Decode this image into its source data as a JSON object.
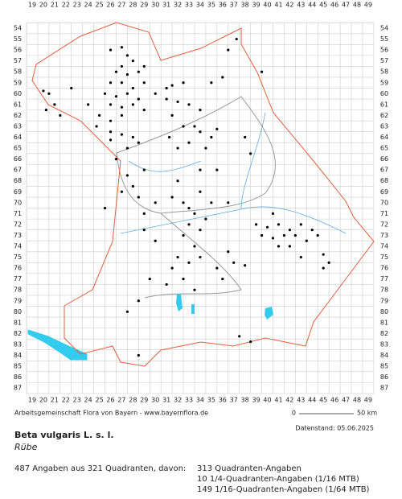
{
  "map": {
    "xticks": [
      19,
      20,
      21,
      22,
      23,
      24,
      25,
      26,
      27,
      28,
      29,
      30,
      31,
      32,
      33,
      34,
      35,
      36,
      37,
      38,
      39,
      40,
      41,
      42,
      43,
      44,
      45,
      46,
      47,
      48,
      49
    ],
    "yticks": [
      54,
      55,
      56,
      57,
      58,
      59,
      60,
      61,
      62,
      63,
      64,
      65,
      66,
      67,
      68,
      69,
      70,
      71,
      72,
      73,
      74,
      75,
      76,
      77,
      78,
      79,
      80,
      81,
      82,
      83,
      84,
      85,
      86,
      87
    ],
    "records": [
      [
        26,
        56
      ],
      [
        27,
        55.75
      ],
      [
        27.5,
        56.5
      ],
      [
        28,
        57
      ],
      [
        27,
        57.5
      ],
      [
        26.5,
        58
      ],
      [
        27.5,
        58.25
      ],
      [
        28.5,
        58
      ],
      [
        29,
        57.5
      ],
      [
        26,
        59
      ],
      [
        27,
        59
      ],
      [
        28,
        59.5
      ],
      [
        29,
        59
      ],
      [
        25.5,
        60
      ],
      [
        26.5,
        60.25
      ],
      [
        27.5,
        60
      ],
      [
        28.5,
        60.5
      ],
      [
        30,
        60
      ],
      [
        31,
        59.5
      ],
      [
        26,
        61
      ],
      [
        27,
        61.25
      ],
      [
        28,
        61
      ],
      [
        29,
        61.5
      ],
      [
        25,
        62
      ],
      [
        26,
        62.5
      ],
      [
        27,
        62
      ],
      [
        24.75,
        63
      ],
      [
        26,
        63.5
      ],
      [
        27,
        63.75
      ],
      [
        28,
        64
      ],
      [
        26,
        64.25
      ],
      [
        27.5,
        65
      ],
      [
        28.5,
        64.5
      ],
      [
        20.5,
        60
      ],
      [
        21,
        61
      ],
      [
        20.25,
        61.5
      ],
      [
        21.5,
        62
      ],
      [
        22.5,
        59.5
      ],
      [
        24,
        61
      ],
      [
        20,
        59.75
      ],
      [
        31.5,
        59.25
      ],
      [
        32.5,
        59
      ],
      [
        31,
        60.5
      ],
      [
        32,
        60.75
      ],
      [
        33,
        61
      ],
      [
        35,
        59
      ],
      [
        36,
        58.5
      ],
      [
        34,
        61.5
      ],
      [
        31.5,
        62
      ],
      [
        32.5,
        63
      ],
      [
        33.5,
        63
      ],
      [
        34,
        63.5
      ],
      [
        35,
        64
      ],
      [
        31.25,
        64
      ],
      [
        32,
        65
      ],
      [
        33,
        64.5
      ],
      [
        34.5,
        65
      ],
      [
        35.5,
        63.25
      ],
      [
        38,
        64
      ],
      [
        38.5,
        65.5
      ],
      [
        37.25,
        55
      ],
      [
        36.5,
        56
      ],
      [
        39.5,
        58
      ],
      [
        27.5,
        67.5
      ],
      [
        28,
        68.5
      ],
      [
        27,
        69
      ],
      [
        28.5,
        69.5
      ],
      [
        29,
        67
      ],
      [
        32,
        68
      ],
      [
        31.5,
        69.5
      ],
      [
        32.5,
        70
      ],
      [
        33,
        70.5
      ],
      [
        34,
        69
      ],
      [
        33.5,
        71
      ],
      [
        34.5,
        71.5
      ],
      [
        35,
        70
      ],
      [
        33,
        72
      ],
      [
        34,
        72.5
      ],
      [
        32.5,
        73
      ],
      [
        33.5,
        74
      ],
      [
        36.5,
        70
      ],
      [
        35.5,
        67
      ],
      [
        34,
        67
      ],
      [
        30,
        70
      ],
      [
        29,
        71
      ],
      [
        39,
        72
      ],
      [
        40,
        72.25
      ],
      [
        41,
        72
      ],
      [
        42,
        72.5
      ],
      [
        43,
        72
      ],
      [
        44,
        72.5
      ],
      [
        39.5,
        73
      ],
      [
        40.5,
        73.25
      ],
      [
        41.5,
        73
      ],
      [
        42.5,
        73
      ],
      [
        43.5,
        73.5
      ],
      [
        44.5,
        73
      ],
      [
        41,
        74
      ],
      [
        42,
        74
      ],
      [
        43,
        75
      ],
      [
        45,
        74.75
      ],
      [
        45.5,
        75.5
      ],
      [
        45,
        76
      ],
      [
        40.5,
        71
      ],
      [
        32,
        75
      ],
      [
        33,
        75.5
      ],
      [
        34,
        75
      ],
      [
        31.5,
        76
      ],
      [
        32.5,
        77
      ],
      [
        33.5,
        78
      ],
      [
        31,
        77.5
      ],
      [
        35.5,
        76
      ],
      [
        36,
        77
      ],
      [
        37,
        75.5
      ],
      [
        38,
        75.75
      ],
      [
        36.5,
        74.5
      ],
      [
        29.5,
        77
      ],
      [
        27.5,
        80
      ],
      [
        28.5,
        79
      ],
      [
        29,
        72.5
      ],
      [
        30,
        73.5
      ],
      [
        37.5,
        82.25
      ],
      [
        38.5,
        82.75
      ],
      [
        28.5,
        84
      ],
      [
        26.5,
        66
      ],
      [
        25.5,
        70.5
      ]
    ]
  },
  "footer": {
    "scale_start": "0",
    "scale_end": "50 km",
    "credit": "Arbeitsgemeinschaft Flora von Bayern - www.bayernflora.de",
    "date": "Datenstand: 05.06.2025",
    "species": "Beta vulgaris L. s. l.",
    "common_name": "Rübe",
    "summary": "487 Angaben aus 321 Quadranten, davon:",
    "counts": [
      "313 Quadranten-Angaben",
      "10 1/4-Quadranten-Angaben (1/16 MTB)",
      "149 1/16-Quadranten-Angaben (1/64 MTB)"
    ]
  }
}
